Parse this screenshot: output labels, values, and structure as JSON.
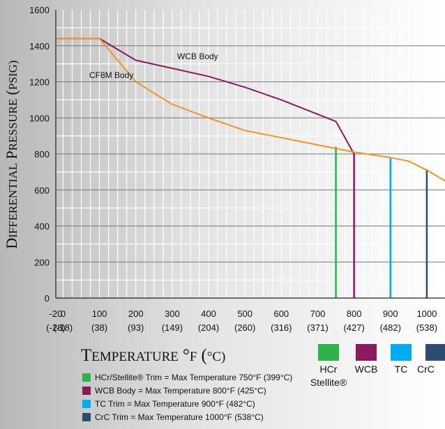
{
  "chart_data": {
    "type": "line",
    "ylabel": "Differential Pressure (PSIG)",
    "xlabel": "Temperature °F (°C)",
    "ylim": [
      0,
      1600
    ],
    "xlim": [
      -20,
      1050
    ],
    "grid": true,
    "y_ticks": [
      "0",
      "200",
      "400",
      "600",
      "800",
      "1000",
      "1200",
      "1400",
      "1600"
    ],
    "x_ticks": [
      {
        "f": "-20",
        "c": "(-28)"
      },
      {
        "f": "0",
        "c": "(-18)"
      },
      {
        "f": "100",
        "c": "(38)"
      },
      {
        "f": "200",
        "c": "(93)"
      },
      {
        "f": "300",
        "c": "(149)"
      },
      {
        "f": "400",
        "c": "(204)"
      },
      {
        "f": "500",
        "c": "(260)"
      },
      {
        "f": "600",
        "c": "(316)"
      },
      {
        "f": "700",
        "c": "(371)"
      },
      {
        "f": "800",
        "c": "(427)"
      },
      {
        "f": "900",
        "c": "(482)"
      },
      {
        "f": "1000",
        "c": "(538)"
      }
    ],
    "series": [
      {
        "name": "WCB Body",
        "color": "#8b1a5e",
        "points": [
          [
            -20,
            1440
          ],
          [
            100,
            1440
          ],
          [
            200,
            1320
          ],
          [
            300,
            1275
          ],
          [
            400,
            1230
          ],
          [
            500,
            1170
          ],
          [
            600,
            1100
          ],
          [
            700,
            1020
          ],
          [
            750,
            980
          ],
          [
            800,
            800
          ]
        ]
      },
      {
        "name": "CF8M Body",
        "color": "#f7941d",
        "points": [
          [
            -20,
            1440
          ],
          [
            100,
            1440
          ],
          [
            200,
            1200
          ],
          [
            300,
            1075
          ],
          [
            400,
            1000
          ],
          [
            500,
            930
          ],
          [
            600,
            890
          ],
          [
            700,
            850
          ],
          [
            800,
            810
          ],
          [
            900,
            780
          ],
          [
            950,
            760
          ],
          [
            1000,
            710
          ],
          [
            1050,
            650
          ]
        ]
      }
    ],
    "verticals": [
      {
        "x": 750,
        "top": 840,
        "color": "#2db34a"
      },
      {
        "x": 800,
        "top": 800,
        "color": "#8b1a5e"
      },
      {
        "x": 900,
        "top": 780,
        "color": "#00aeef"
      },
      {
        "x": 1000,
        "top": 715,
        "color": "#2c4b6e"
      }
    ]
  },
  "annotations": {
    "wcb": "WCB Body",
    "cf8m": "CF8M Body"
  },
  "legend": [
    {
      "color": "#2db34a",
      "text": "HCr/Stellite® Trim = Max Temperature 750°F (399°C)"
    },
    {
      "color": "#8b1a5e",
      "text": "WCB Body = Max Temperature 800°F (425°C)"
    },
    {
      "color": "#00aeef",
      "text": "TC Trim = Max Temperature 900°F (482°C)"
    },
    {
      "color": "#2c4b6e",
      "text": "CrC Trim = Max Temperature  1000°F (538°C)"
    }
  ],
  "key": [
    {
      "color": "#2db34a",
      "label": "HCr",
      "sub": "Stellite®"
    },
    {
      "color": "#8b1a5e",
      "label": "WCB"
    },
    {
      "color": "#00aeef",
      "label": "TC"
    },
    {
      "color": "#2c4b6e",
      "label": "CrC"
    }
  ]
}
